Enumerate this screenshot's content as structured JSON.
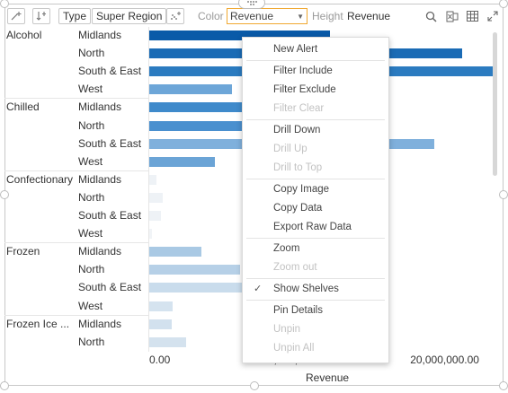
{
  "toolbar": {
    "type_label": "Type",
    "super_region_label": "Super Region",
    "color_label": "Color",
    "color_value": "Revenue",
    "height_label": "Height",
    "height_value": "Revenue"
  },
  "chart_data": {
    "type": "bar",
    "orientation": "horizontal",
    "xlabel": "Revenue",
    "x_ticks": [
      "0.00",
      "10,000,000.00",
      "20,000,000.00"
    ],
    "xlim": [
      0,
      23500000
    ],
    "groups": [
      {
        "category": "Alcohol",
        "rows": [
          {
            "label": "Midlands",
            "value": 12200000,
            "color": "#0a5aa8"
          },
          {
            "label": "North",
            "value": 21100000,
            "color": "#1a6bb5"
          },
          {
            "label": "South & East",
            "value": 23300000,
            "color": "#2b7bc0"
          },
          {
            "label": "West",
            "value": 5600000,
            "color": "#6da6d8"
          }
        ]
      },
      {
        "category": "Chilled",
        "rows": [
          {
            "label": "Midlands",
            "value": 12300000,
            "color": "#3f8acb"
          },
          {
            "label": "North",
            "value": 11500000,
            "color": "#4a90cf"
          },
          {
            "label": "South & East",
            "value": 19200000,
            "color": "#7fb0dc"
          },
          {
            "label": "West",
            "value": 4400000,
            "color": "#6ba4d6"
          }
        ]
      },
      {
        "category": "Confectionary",
        "rows": [
          {
            "label": "Midlands",
            "value": 500000,
            "color": "#eef2f6"
          },
          {
            "label": "North",
            "value": 900000,
            "color": "#eef2f6"
          },
          {
            "label": "South & East",
            "value": 800000,
            "color": "#eef2f6"
          },
          {
            "label": "West",
            "value": 200000,
            "color": "#f1f4f7"
          }
        ]
      },
      {
        "category": "Frozen",
        "rows": [
          {
            "label": "Midlands",
            "value": 3500000,
            "color": "#a9c9e4"
          },
          {
            "label": "North",
            "value": 6100000,
            "color": "#b6d0e7"
          },
          {
            "label": "South & East",
            "value": 9200000,
            "color": "#c9dcec"
          },
          {
            "label": "West",
            "value": 1600000,
            "color": "#d5e3ef"
          }
        ]
      },
      {
        "category": "Frozen Ice ...",
        "rows": [
          {
            "label": "Midlands",
            "value": 1500000,
            "color": "#d2e1ee"
          },
          {
            "label": "North",
            "value": 2500000,
            "color": "#d4e2ee"
          }
        ]
      }
    ]
  },
  "context_menu": {
    "items": [
      {
        "label": "New Alert",
        "enabled": true,
        "sep_after": true
      },
      {
        "label": "Filter Include",
        "enabled": true
      },
      {
        "label": "Filter Exclude",
        "enabled": true
      },
      {
        "label": "Filter Clear",
        "enabled": false,
        "sep_after": true
      },
      {
        "label": "Drill Down",
        "enabled": true
      },
      {
        "label": "Drill Up",
        "enabled": false
      },
      {
        "label": "Drill to Top",
        "enabled": false,
        "sep_after": true
      },
      {
        "label": "Copy Image",
        "enabled": true
      },
      {
        "label": "Copy Data",
        "enabled": true
      },
      {
        "label": "Export Raw Data",
        "enabled": true,
        "sep_after": true
      },
      {
        "label": "Zoom",
        "enabled": true
      },
      {
        "label": "Zoom out",
        "enabled": false,
        "sep_after": true
      },
      {
        "label": "Show Shelves",
        "enabled": true,
        "checked": true,
        "sep_after": true
      },
      {
        "label": "Pin Details",
        "enabled": true
      },
      {
        "label": "Unpin",
        "enabled": false
      },
      {
        "label": "Unpin All",
        "enabled": false
      }
    ]
  },
  "icons": {
    "add_dimension": "add-dimension-icon",
    "sort": "sort-icon",
    "scatter": "scatter-add-icon",
    "search": "search-icon",
    "excel": "excel-export-icon",
    "table": "table-icon",
    "expand": "expand-icon",
    "check": "checkmark-icon"
  }
}
